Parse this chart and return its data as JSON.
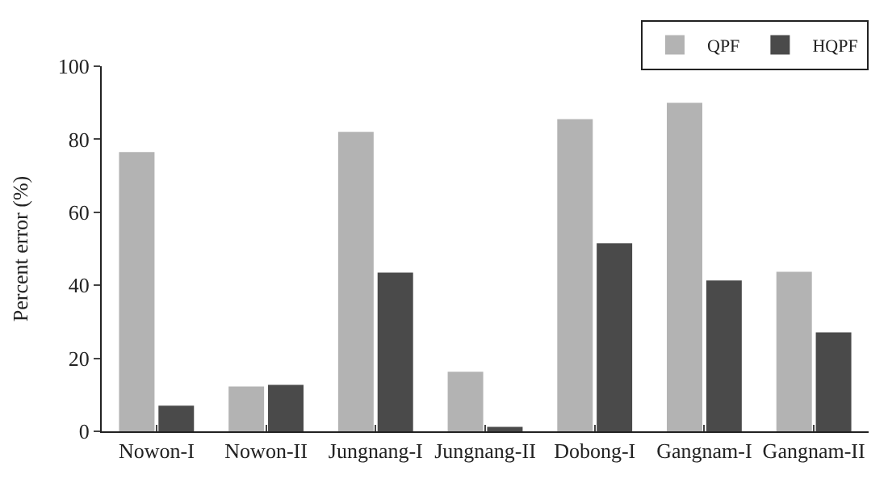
{
  "chart_data": {
    "type": "bar",
    "ylabel": "Percent error (%)",
    "categories": [
      "Nowon-I",
      "Nowon-II",
      "Jungnang-I",
      "Jungnang-II",
      "Dobong-I",
      "Gangnam-I",
      "Gangnam-II"
    ],
    "series": [
      {
        "name": "QPF",
        "color": "#b3b3b3",
        "values": [
          76.5,
          12.3,
          82,
          16.3,
          85.5,
          90,
          43.7
        ]
      },
      {
        "name": "HQPF",
        "color": "#4a4a4a",
        "values": [
          7,
          12.7,
          43.5,
          1.2,
          51.5,
          41.3,
          27.1
        ]
      }
    ],
    "ylim": [
      0,
      100
    ],
    "yticks": [
      0,
      20,
      40,
      60,
      80,
      100
    ],
    "legend": "top right"
  }
}
